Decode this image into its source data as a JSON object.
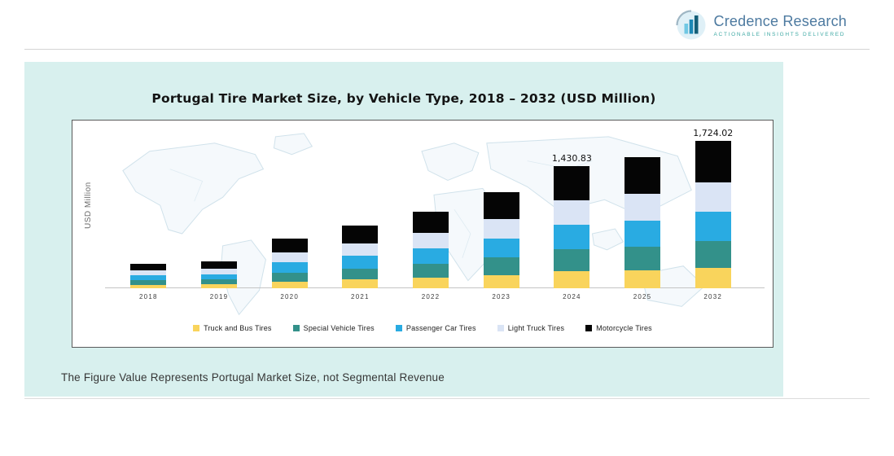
{
  "header": {
    "brand_name": "Credence Research",
    "brand_tagline": "Actionable Insights Delivered",
    "logo_icon": "bar-chart-circle-icon"
  },
  "chart_data": {
    "type": "bar",
    "stacked": true,
    "title": "Portugal Tire Market Size, by Vehicle Type, 2018 – 2032 (USD Million)",
    "ylabel": "USD Million",
    "xlabel": "",
    "categories": [
      "2018",
      "2019",
      "2020",
      "2021",
      "2022",
      "2023",
      "2024",
      "2025",
      "2032"
    ],
    "series": [
      {
        "name": "Truck and Bus Tires",
        "color": "#F9D45C",
        "values": [
          41,
          45,
          81,
          102,
          126,
          157,
          200,
          214,
          241
        ]
      },
      {
        "name": "Special Vehicle Tires",
        "color": "#33918A",
        "values": [
          52,
          58,
          104,
          131,
          162,
          202,
          258,
          275,
          310
        ]
      },
      {
        "name": "Passenger Car Tires",
        "color": "#29ABE2",
        "values": [
          58,
          64,
          116,
          146,
          180,
          224,
          286,
          306,
          345
        ]
      },
      {
        "name": "Light Truck Tires",
        "color": "#DAE4F5",
        "values": [
          58,
          64,
          116,
          146,
          180,
          224,
          286,
          306,
          345
        ]
      },
      {
        "name": "Motorcycle Tires",
        "color": "#050505",
        "values": [
          81,
          89,
          163,
          205,
          252,
          313,
          400.83,
          429,
          483.02
        ]
      }
    ],
    "totals_labeled": {
      "2024": 1430.83,
      "2032": 1724.02
    },
    "data_labels": {
      "2024": "1,430.83",
      "2032": "1,724.02"
    },
    "ylim": [
      0,
      1800
    ],
    "grid": false,
    "legend_position": "bottom"
  },
  "footnote": "The Figure Value Represents Portugal Market Size, not Segmental Revenue",
  "colors": {
    "panel_background": "#D8F0EE",
    "plot_background": "#FFFFFF",
    "brand_text": "#4D7AA0",
    "brand_tagline": "#3FA9A4"
  }
}
